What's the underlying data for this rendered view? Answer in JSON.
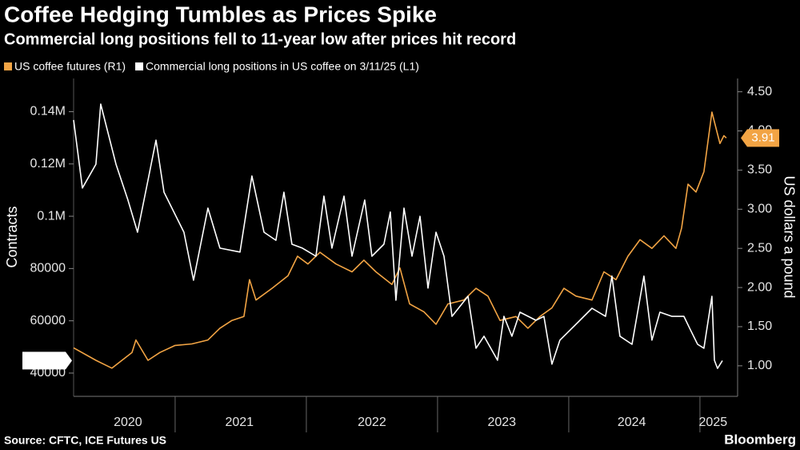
{
  "chart_data": {
    "type": "line",
    "title": "Coffee Hedging Tumbles as Prices Spike",
    "subtitle": "Commercial long positions fell to 11-year low after prices hit record",
    "y_label": "Contracts",
    "y2_label": "US dollars a pound",
    "source": "Source: CFTC, ICE Futures US",
    "brand": "Bloomberg",
    "xlim": [
      2020.226,
      2025.287
    ],
    "xticks": [
      {
        "value": 2020.64,
        "label": "2020"
      },
      {
        "value": 2021.49,
        "label": "2021"
      },
      {
        "value": 2022.5,
        "label": "2022"
      },
      {
        "value": 2023.49,
        "label": "2023"
      },
      {
        "value": 2024.48,
        "label": "2024"
      },
      {
        "value": 2025.1,
        "label": "2025"
      }
    ],
    "xgrid": [
      2021,
      2022,
      2023,
      2024,
      2025
    ],
    "ylim": [
      31100,
      152700
    ],
    "yticks": [
      40000,
      60000,
      80000,
      {
        "value": 100000,
        "label": "0.1M"
      },
      {
        "value": 120000,
        "label": "0.12M"
      },
      {
        "value": 140000,
        "label": "0.14M"
      }
    ],
    "y2lim": [
      0.61,
      4.67
    ],
    "y2ticks": [
      {
        "value": 1,
        "label": "1.00"
      },
      {
        "value": 1.5,
        "label": "1.50"
      },
      {
        "value": 2,
        "label": "2.00"
      },
      {
        "value": 2.5,
        "label": "2.50"
      },
      {
        "value": 3,
        "label": "3.00"
      },
      {
        "value": 3.5,
        "label": "3.50"
      },
      {
        "value": 4,
        "label": "4.00"
      },
      {
        "value": 4.5,
        "label": "4.50"
      }
    ],
    "series": [
      {
        "name": "US coffee futures (R1)",
        "color": "#f2a444",
        "axis": "y2",
        "x": [
          2020.226,
          2020.396,
          2020.518,
          2020.671,
          2020.701,
          2020.793,
          2020.884,
          2021.0,
          2021.128,
          2021.25,
          2021.341,
          2021.433,
          2021.524,
          2021.567,
          2021.616,
          2021.738,
          2021.86,
          2021.933,
          2022.012,
          2022.104,
          2022.226,
          2022.348,
          2022.439,
          2022.53,
          2022.652,
          2022.713,
          2022.787,
          2022.896,
          2022.988,
          2023.079,
          2023.201,
          2023.293,
          2023.384,
          2023.476,
          2023.598,
          2023.689,
          2023.78,
          2023.872,
          2023.963,
          2024.055,
          2024.177,
          2024.268,
          2024.36,
          2024.451,
          2024.543,
          2024.634,
          2024.726,
          2024.817,
          2024.86,
          2024.909,
          2024.97,
          2025.03,
          2025.091,
          2025.152,
          2025.183,
          2025.201
        ],
        "values": [
          1.23,
          1.07,
          0.97,
          1.17,
          1.33,
          1.07,
          1.17,
          1.26,
          1.28,
          1.33,
          1.48,
          1.58,
          1.63,
          2.1,
          1.84,
          1.99,
          2.15,
          2.4,
          2.3,
          2.45,
          2.3,
          2.2,
          2.35,
          2.2,
          2.04,
          2.25,
          1.79,
          1.69,
          1.53,
          1.79,
          1.84,
          1.99,
          1.89,
          1.58,
          1.63,
          1.48,
          1.63,
          1.74,
          1.99,
          1.89,
          1.84,
          2.2,
          2.1,
          2.4,
          2.61,
          2.5,
          2.66,
          2.5,
          2.76,
          3.32,
          3.22,
          3.48,
          4.24,
          3.84,
          3.94,
          3.91
        ]
      },
      {
        "name": "Commercial long positions in US coffee on 3/11/25 (L1)",
        "color": "#ffffff",
        "axis": "y",
        "x": [
          2020.226,
          2020.293,
          2020.396,
          2020.433,
          2020.549,
          2020.64,
          2020.713,
          2020.793,
          2020.854,
          2020.915,
          2021.067,
          2021.14,
          2021.25,
          2021.341,
          2021.494,
          2021.585,
          2021.677,
          2021.768,
          2021.829,
          2021.89,
          2021.97,
          2022.073,
          2022.134,
          2022.195,
          2022.287,
          2022.348,
          2022.445,
          2022.5,
          2022.591,
          2022.64,
          2022.683,
          2022.744,
          2022.805,
          2022.866,
          2022.927,
          2022.988,
          2023.049,
          2023.11,
          2023.232,
          2023.293,
          2023.354,
          2023.457,
          2023.506,
          2023.567,
          2023.628,
          2023.75,
          2023.811,
          2023.872,
          2023.933,
          2024.055,
          2024.177,
          2024.28,
          2024.329,
          2024.39,
          2024.482,
          2024.573,
          2024.634,
          2024.695,
          2024.787,
          2024.878,
          2024.921,
          2024.982,
          2025.03,
          2025.091,
          2025.11,
          2025.134,
          2025.171
        ],
        "values": [
          136800,
          110800,
          119900,
          142900,
          119900,
          106200,
          93900,
          113800,
          129100,
          109200,
          93900,
          75500,
          103100,
          87800,
          86300,
          115400,
          93900,
          90800,
          109200,
          89300,
          87800,
          84700,
          107700,
          87800,
          107700,
          84700,
          106200,
          84700,
          89300,
          101600,
          67900,
          103100,
          84700,
          100000,
          72500,
          93900,
          84700,
          61700,
          69400,
          49500,
          54100,
          44900,
          61700,
          54100,
          63300,
          60200,
          61700,
          43400,
          52600,
          58700,
          64800,
          61700,
          77100,
          54100,
          51000,
          77100,
          52600,
          63300,
          61700,
          61700,
          57200,
          51000,
          49500,
          69400,
          44900,
          41800,
          44750
        ]
      }
    ]
  }
}
